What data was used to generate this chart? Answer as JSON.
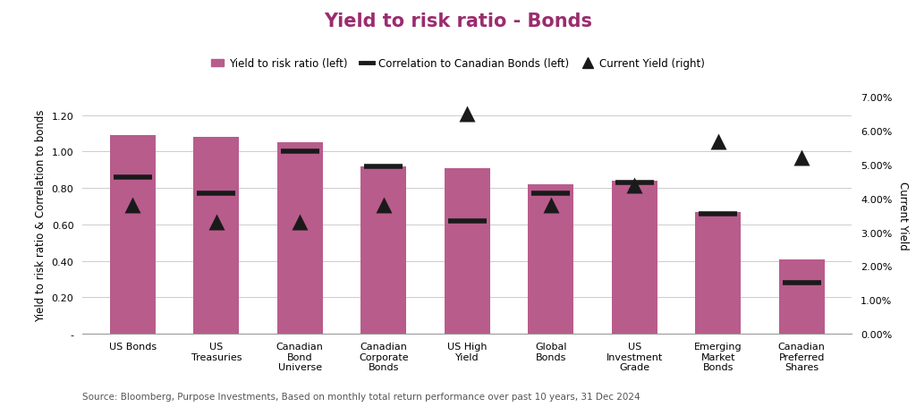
{
  "title": "Yield to risk ratio - Bonds",
  "categories": [
    "US Bonds",
    "US\nTreasuries",
    "Canadian\nBond\nUniverse",
    "Canadian\nCorporate\nBonds",
    "US High\nYield",
    "Global\nBonds",
    "US\nInvestment\nGrade",
    "Emerging\nMarket\nBonds",
    "Canadian\nPreferred\nShares"
  ],
  "bar_values": [
    1.09,
    1.08,
    1.05,
    0.92,
    0.91,
    0.82,
    0.84,
    0.67,
    0.41
  ],
  "correlation_values": [
    0.86,
    0.77,
    1.0,
    0.92,
    0.62,
    0.77,
    0.83,
    0.66,
    0.28
  ],
  "current_yield": [
    0.038,
    0.033,
    0.033,
    0.038,
    0.065,
    0.038,
    0.044,
    0.057,
    0.052
  ],
  "bar_color": "#b85c8c",
  "corr_color": "#1a1a1a",
  "yield_color": "#1a1a1a",
  "title_color": "#9b2c6e",
  "ylabel_left": "Yield to risk ratio & Correlation to bonds",
  "ylabel_right": "Current Yield",
  "ylim_left": [
    0,
    1.3
  ],
  "ylim_right": [
    0.0,
    0.07
  ],
  "yticks_left": [
    0.0,
    0.2,
    0.4,
    0.6,
    0.8,
    1.0,
    1.2
  ],
  "ytick_labels_left": [
    "-",
    "0.20",
    "0.40",
    "0.60",
    "0.80",
    "1.00",
    "1.20"
  ],
  "yticks_right": [
    0.0,
    0.01,
    0.02,
    0.03,
    0.04,
    0.05,
    0.06,
    0.07
  ],
  "ytick_labels_right": [
    "0.00%",
    "1.00%",
    "2.00%",
    "3.00%",
    "4.00%",
    "5.00%",
    "6.00%",
    "7.00%"
  ],
  "legend_labels": [
    "Yield to risk ratio (left)",
    "Correlation to Canadian Bonds (left)",
    "Current Yield (right)"
  ],
  "source_text": "Source: Bloomberg, Purpose Investments, Based on monthly total return performance over past 10 years, 31 Dec 2024",
  "title_fontsize": 15,
  "label_fontsize": 8.5,
  "tick_fontsize": 8,
  "source_fontsize": 7.5
}
